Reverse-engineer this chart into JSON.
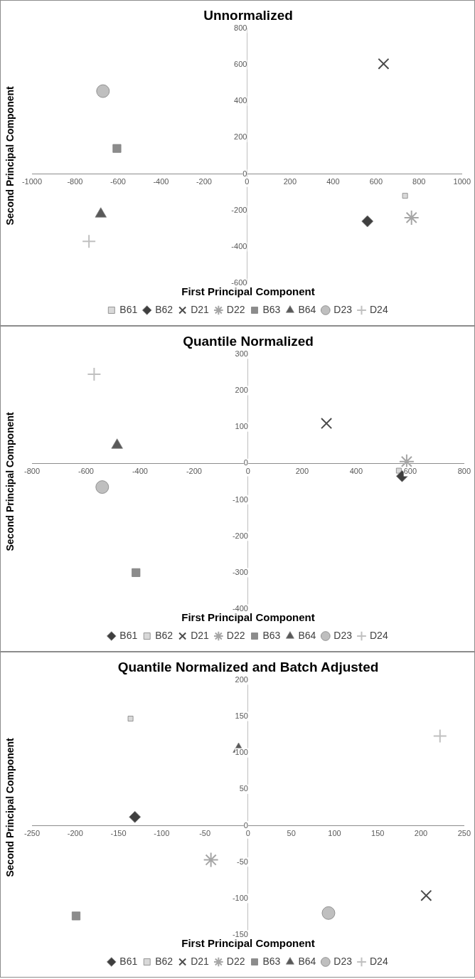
{
  "chart_data": [
    {
      "type": "scatter",
      "title": "Unnormalized",
      "xlabel": "First Principal Component",
      "ylabel": "Second Principal Component",
      "xlim": [
        -1000,
        1000
      ],
      "xticks": [
        -1000,
        -800,
        -600,
        -400,
        -200,
        0,
        200,
        400,
        600,
        800,
        1000
      ],
      "ylim": [
        -600,
        800
      ],
      "yticks": [
        -600,
        -400,
        -200,
        0,
        200,
        400,
        600,
        800
      ],
      "grid": false,
      "legend": "bottom",
      "series": [
        {
          "name": "B61",
          "color": "#d9d9d9",
          "marker": "square",
          "x": [
            735
          ],
          "values": [
            -120
          ]
        },
        {
          "name": "B62",
          "color": "#3f3f3f",
          "marker": "diamond",
          "x": [
            560
          ],
          "values": [
            -260
          ]
        },
        {
          "name": "D21",
          "color": "#4a4a4a",
          "marker": "x",
          "x": [
            635
          ],
          "values": [
            605
          ]
        },
        {
          "name": "D22",
          "color": "#a6a6a6",
          "marker": "cross",
          "x": [
            765
          ],
          "values": [
            -240
          ]
        },
        {
          "name": "B63",
          "color": "#8c8c8c",
          "marker": "square",
          "x": [
            -605
          ],
          "values": [
            140
          ]
        },
        {
          "name": "B64",
          "color": "#595959",
          "marker": "triangle",
          "x": [
            -680
          ],
          "values": [
            -220
          ]
        },
        {
          "name": "D23",
          "color": "#bfbfbf",
          "marker": "circle",
          "x": [
            -670
          ],
          "values": [
            455
          ]
        },
        {
          "name": "D24",
          "color": "#c0c0c0",
          "marker": "plus",
          "x": [
            -735
          ],
          "values": [
            -370
          ]
        }
      ]
    },
    {
      "type": "scatter",
      "title": "Quantile Normalized",
      "xlabel": "First Principal Component",
      "ylabel": "Second Principal Component",
      "xlim": [
        -800,
        800
      ],
      "xticks": [
        -800,
        -600,
        -400,
        -200,
        0,
        200,
        400,
        600,
        800
      ],
      "ylim": [
        -400,
        300
      ],
      "yticks": [
        -400,
        -300,
        -200,
        -100,
        0,
        100,
        200,
        300
      ],
      "grid": false,
      "legend": "bottom",
      "series": [
        {
          "name": "B61",
          "color": "#3f3f3f",
          "marker": "diamond",
          "x": [
            570
          ],
          "values": [
            -35
          ]
        },
        {
          "name": "B62",
          "color": "#d9d9d9",
          "marker": "square",
          "x": [
            558
          ],
          "values": [
            -20
          ]
        },
        {
          "name": "D21",
          "color": "#4a4a4a",
          "marker": "x",
          "x": [
            290
          ],
          "values": [
            110
          ]
        },
        {
          "name": "D22",
          "color": "#a6a6a6",
          "marker": "cross",
          "x": [
            587
          ],
          "values": [
            5
          ]
        },
        {
          "name": "B63",
          "color": "#8c8c8c",
          "marker": "square",
          "x": [
            -415
          ],
          "values": [
            -300
          ]
        },
        {
          "name": "B64",
          "color": "#595959",
          "marker": "triangle",
          "x": [
            -485
          ],
          "values": [
            50
          ]
        },
        {
          "name": "D23",
          "color": "#bfbfbf",
          "marker": "circle",
          "x": [
            -540
          ],
          "values": [
            -65
          ]
        },
        {
          "name": "D24",
          "color": "#c0c0c0",
          "marker": "plus",
          "x": [
            -570
          ],
          "values": [
            245
          ]
        }
      ]
    },
    {
      "type": "scatter",
      "title": "Quantile Normalized and Batch Adjusted",
      "xlabel": "First Principal Component",
      "ylabel": "Second Principal Component",
      "xlim": [
        -250,
        250
      ],
      "xticks": [
        -250,
        -200,
        -150,
        -100,
        -50,
        0,
        50,
        100,
        150,
        200,
        250
      ],
      "ylim": [
        -150,
        200
      ],
      "yticks": [
        -150,
        -100,
        -50,
        0,
        50,
        100,
        150,
        200
      ],
      "grid": false,
      "legend": "bottom",
      "series": [
        {
          "name": "B61",
          "color": "#3f3f3f",
          "marker": "diamond",
          "x": [
            -131
          ],
          "values": [
            12
          ]
        },
        {
          "name": "B62",
          "color": "#d9d9d9",
          "marker": "square",
          "x": [
            -136
          ],
          "values": [
            147
          ]
        },
        {
          "name": "D21",
          "color": "#4a4a4a",
          "marker": "x",
          "x": [
            206
          ],
          "values": [
            -96
          ]
        },
        {
          "name": "D22",
          "color": "#a6a6a6",
          "marker": "cross",
          "x": [
            -43
          ],
          "values": [
            -47
          ]
        },
        {
          "name": "B63",
          "color": "#8c8c8c",
          "marker": "square",
          "x": [
            -199
          ],
          "values": [
            -124
          ]
        },
        {
          "name": "B64",
          "color": "#595959",
          "marker": "triangle",
          "x": [
            -11
          ],
          "values": [
            105
          ]
        },
        {
          "name": "D23",
          "color": "#bfbfbf",
          "marker": "circle",
          "x": [
            93
          ],
          "values": [
            -120
          ]
        },
        {
          "name": "D24",
          "color": "#c0c0c0",
          "marker": "plus",
          "x": [
            222
          ],
          "values": [
            123
          ]
        }
      ]
    }
  ]
}
